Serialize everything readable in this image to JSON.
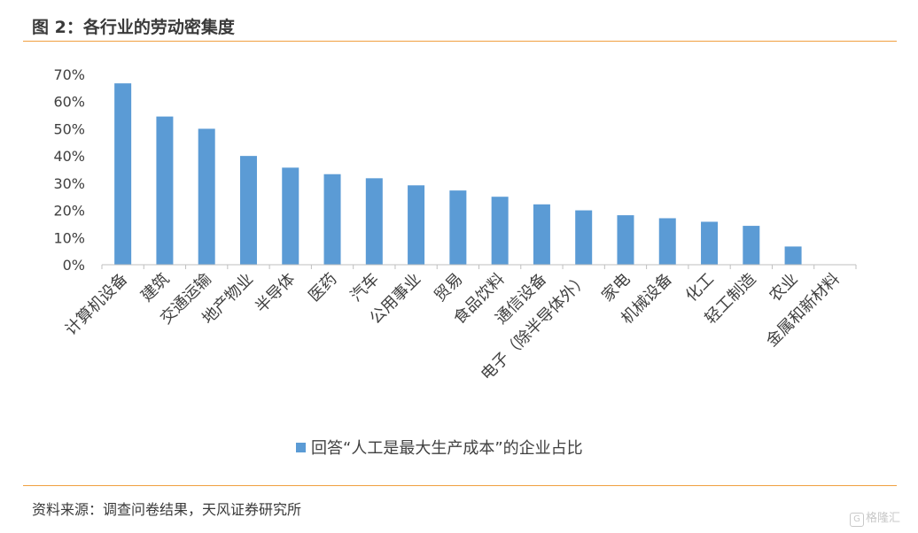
{
  "figure": {
    "title": "图 2：各行业的劳动密集度",
    "source": "资料来源：调查问卷结果，天风证券研究所",
    "watermark": "格隆汇",
    "watermark_mark": "G"
  },
  "colors": {
    "bar": "#5b9bd5",
    "axis": "#bfbfbf",
    "text": "#404040",
    "rule": "#f0a040"
  },
  "chart_data": {
    "type": "bar",
    "categories": [
      "计算机设备",
      "建筑",
      "交通运输",
      "地产物业",
      "半导体",
      "医药",
      "汽车",
      "公用事业",
      "贸易",
      "食品饮料",
      "通信设备",
      "电子（除半导体外）",
      "家电",
      "机械设备",
      "化工",
      "轻工制造",
      "农业",
      "金属和新材料"
    ],
    "series": [
      {
        "name": "回答“人工是最大生产成本”的企业占比",
        "values": [
          66.7,
          54.5,
          50.0,
          40.0,
          35.7,
          33.3,
          31.8,
          29.2,
          27.3,
          25.0,
          22.2,
          20.0,
          18.2,
          17.1,
          15.8,
          14.3,
          6.7,
          0
        ]
      }
    ],
    "yticks": [
      "0%",
      "10%",
      "20%",
      "30%",
      "40%",
      "50%",
      "60%",
      "70%"
    ],
    "ylim": [
      0,
      70
    ],
    "xlabel": "",
    "ylabel": "",
    "grid": false,
    "legend_position": "bottom"
  }
}
